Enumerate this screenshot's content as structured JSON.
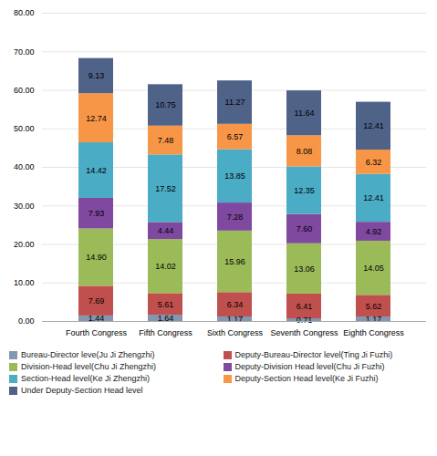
{
  "chart_data": {
    "type": "bar",
    "stacked": true,
    "data_labels": true,
    "grid": true,
    "legend": "bottom",
    "categories": [
      "Fourth Congress",
      "Fifth Congress",
      "Sixth Congress",
      "Seventh Congress",
      "Eighth Congress"
    ],
    "series": [
      {
        "name": "Bureau-Director leve(Ju Ji Zhengzhi)",
        "color": "#8496b0",
        "values": [
          1.44,
          1.64,
          1.17,
          0.71,
          1.17
        ],
        "value_labels": [
          "1.44",
          "1.64",
          "1.17",
          "0.71",
          "1.17"
        ]
      },
      {
        "name": "Deputy-Bureau-Director level(Ting Ji Fuzhi)",
        "color": "#c0504d",
        "values": [
          7.69,
          5.61,
          6.34,
          6.41,
          5.62
        ],
        "value_labels": [
          "7.69",
          "5.61",
          "6.34",
          "6.41",
          "5.62"
        ]
      },
      {
        "name": "Division-Head level(Chu Ji Zhengzhi)",
        "color": "#9bbb59",
        "values": [
          14.9,
          14.02,
          15.96,
          13.06,
          14.05
        ],
        "value_labels": [
          "14.90",
          "14.02",
          "15.96",
          "13.06",
          "14.05"
        ]
      },
      {
        "name": "Deputy-Division Head level(Chu Ji Fuzhi)",
        "color": "#7f49a0",
        "values": [
          7.93,
          4.44,
          7.28,
          7.6,
          4.92
        ],
        "value_labels": [
          "7.93",
          "4.44",
          "7.28",
          "7.60",
          "4.92"
        ]
      },
      {
        "name": "Section-Head level(Ke Ji Zhengzhi)",
        "color": "#4aacc5",
        "values": [
          14.42,
          17.52,
          13.85,
          12.35,
          12.41
        ],
        "value_labels": [
          "14.42",
          "17.52",
          "13.85",
          "12.35",
          "12.41"
        ]
      },
      {
        "name": "Deputy-Section Head level(Ke Ji Fuzhi)",
        "color": "#f79646",
        "values": [
          12.74,
          7.48,
          6.57,
          8.08,
          6.32
        ],
        "value_labels": [
          "12.74",
          "7.48",
          "6.57",
          "8.08",
          "6.32"
        ]
      },
      {
        "name": "Under Deputy-Section Head level",
        "color": "#4f6288",
        "values": [
          9.13,
          10.75,
          11.27,
          11.64,
          12.41
        ],
        "value_labels": [
          "9.13",
          "10.75",
          "11.27",
          "11.64",
          "12.41"
        ]
      }
    ],
    "ylim": [
      0,
      80
    ],
    "yticks": [
      {
        "value": 0,
        "label": "0.00"
      },
      {
        "value": 10,
        "label": "10.00"
      },
      {
        "value": 20,
        "label": "20.00"
      },
      {
        "value": 30,
        "label": "30.00"
      },
      {
        "value": 40,
        "label": "40.00"
      },
      {
        "value": 50,
        "label": "50.00"
      },
      {
        "value": 60,
        "label": "60.00"
      },
      {
        "value": 70,
        "label": "70.00"
      },
      {
        "value": 80,
        "label": "80.00"
      }
    ]
  }
}
